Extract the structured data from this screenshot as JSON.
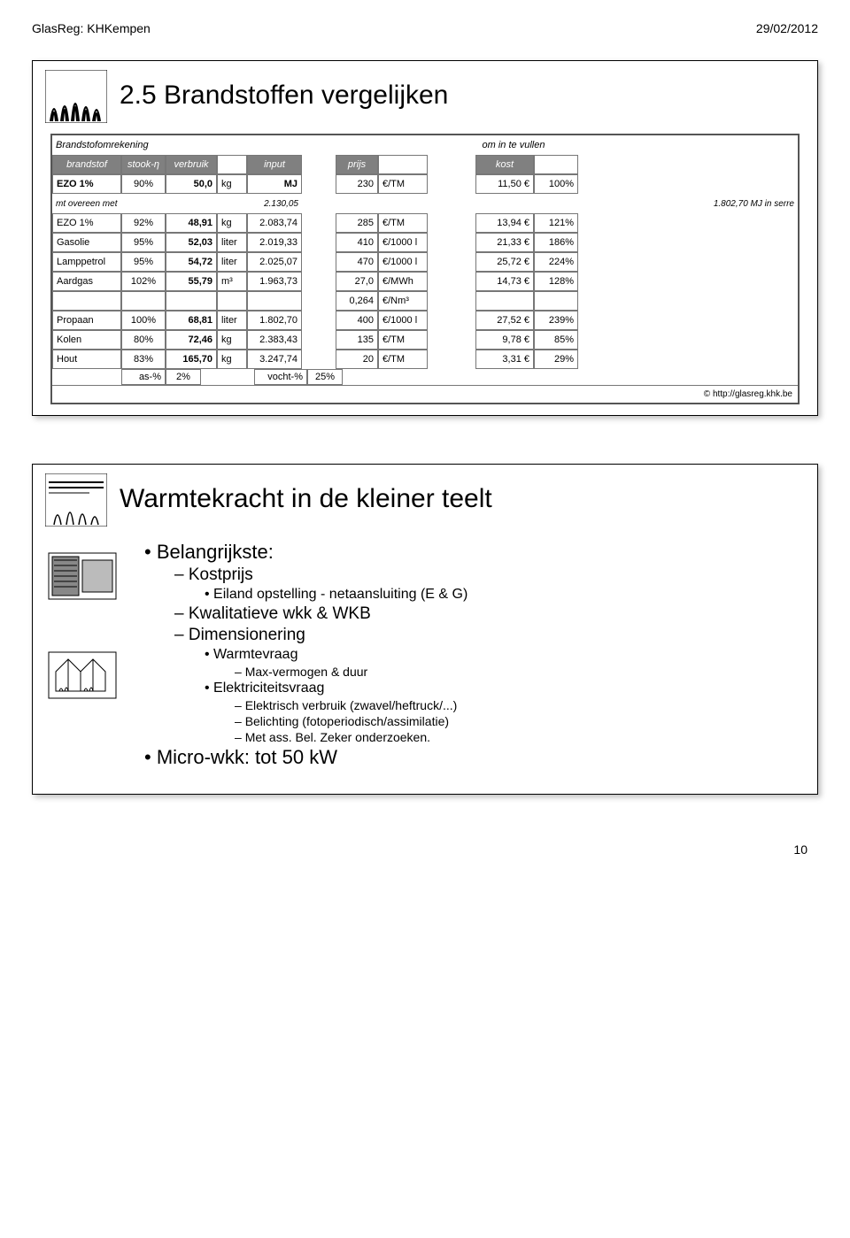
{
  "header": {
    "left": "GlasReg: KHKempen",
    "right": "29/02/2012"
  },
  "slide1": {
    "title": "2.5 Brandstoffen vergelijken",
    "section_left": "Brandstofomrekening",
    "section_right": "om in te vullen",
    "columns": [
      "brandstof",
      "stook-η",
      "verbruik",
      "",
      "input",
      "",
      "prijs",
      "",
      "",
      "kost",
      ""
    ],
    "ref_row": {
      "name": "EZO 1%",
      "eff": "90%",
      "val": "50,0",
      "unit": "kg",
      "inp": "MJ",
      "price": "230",
      "punit": "€/TM",
      "cost": "11,50 €",
      "pct": "100%"
    },
    "mt_label": "mt overeen met",
    "mt_mid": "2.130,05",
    "mt_right": "1.802,70 MJ in serre",
    "rows": [
      {
        "name": "EZO 1%",
        "eff": "92%",
        "val": "48,91",
        "unit": "kg",
        "inp": "2.083,74",
        "price": "285",
        "punit": "€/TM",
        "cost": "13,94 €",
        "pct": "121%"
      },
      {
        "name": "Gasolie",
        "eff": "95%",
        "val": "52,03",
        "unit": "liter",
        "inp": "2.019,33",
        "price": "410",
        "punit": "€/1000 l",
        "cost": "21,33 €",
        "pct": "186%"
      },
      {
        "name": "Lamppetrol",
        "eff": "95%",
        "val": "54,72",
        "unit": "liter",
        "inp": "2.025,07",
        "price": "470",
        "punit": "€/1000 l",
        "cost": "25,72 €",
        "pct": "224%"
      },
      {
        "name": "Aardgas",
        "eff": "102%",
        "val": "55,79",
        "unit": "m³",
        "inp": "1.963,73",
        "price": "27,0",
        "punit": "€/MWh",
        "cost": "14,73 €",
        "pct": "128%"
      }
    ],
    "extra_unit_row": {
      "price": "0,264",
      "punit": "€/Nm³"
    },
    "rows2": [
      {
        "name": "Propaan",
        "eff": "100%",
        "val": "68,81",
        "unit": "liter",
        "inp": "1.802,70",
        "price": "400",
        "punit": "€/1000 l",
        "cost": "27,52 €",
        "pct": "239%"
      },
      {
        "name": "Kolen",
        "eff": "80%",
        "val": "72,46",
        "unit": "kg",
        "inp": "2.383,43",
        "price": "135",
        "punit": "€/TM",
        "cost": "9,78 €",
        "pct": "85%"
      },
      {
        "name": "Hout",
        "eff": "83%",
        "val": "165,70",
        "unit": "kg",
        "inp": "3.247,74",
        "price": "20",
        "punit": "€/TM",
        "cost": "3,31 €",
        "pct": "29%"
      }
    ],
    "ash_row": {
      "a": "as-%",
      "b": "2%",
      "c": "vocht-%",
      "d": "25%"
    },
    "footer_url": "© http://glasreg.khk.be"
  },
  "slide2": {
    "title": "Warmtekracht in de kleiner teelt",
    "b1": "Belangrijkste:",
    "b1_1": "Kostprijs",
    "b1_1_1": "Eiland opstelling - netaansluiting (E & G)",
    "b1_2": "Kwalitatieve wkk & WKB",
    "b1_3": "Dimensionering",
    "b1_3_1": "Warmtevraag",
    "b1_3_1_1": "Max-vermogen & duur",
    "b1_3_2": "Elektriciteitsvraag",
    "b1_3_2_1": "Elektrisch verbruik (zwavel/heftruck/...)",
    "b1_3_2_2": "Belichting (fotoperiodisch/assimilatie)",
    "b1_3_2_3": "Met ass. Bel. Zeker onderzoeken.",
    "b2": "Micro-wkk: tot 50 kW"
  },
  "page_number": "10"
}
